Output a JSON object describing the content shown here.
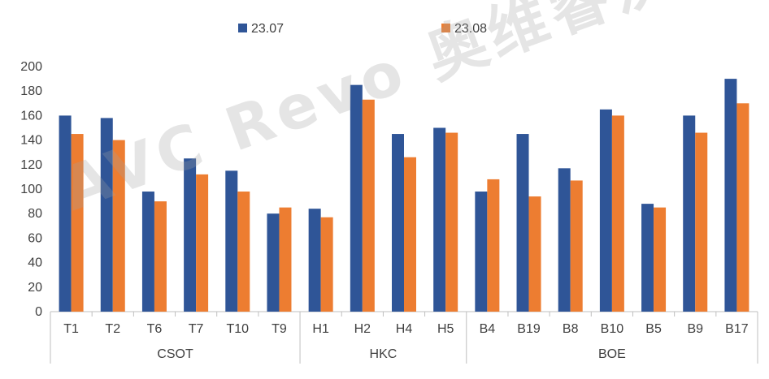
{
  "chart_data": {
    "type": "bar",
    "title": "",
    "xlabel": "",
    "ylabel": "",
    "ylim": [
      0,
      200
    ],
    "yticks": [
      0,
      20,
      40,
      60,
      80,
      100,
      120,
      140,
      160,
      180,
      200
    ],
    "grid": false,
    "legend_position": "top",
    "categories": [
      "T1",
      "T2",
      "T6",
      "T7",
      "T10",
      "T9",
      "H1",
      "H2",
      "H4",
      "H5",
      "B4",
      "B19",
      "B8",
      "B10",
      "B5",
      "B9",
      "B17"
    ],
    "groups": [
      {
        "name": "CSOT",
        "categories": [
          "T1",
          "T2",
          "T6",
          "T7",
          "T10",
          "T9"
        ]
      },
      {
        "name": "HKC",
        "categories": [
          "H1",
          "H2",
          "H4",
          "H5"
        ]
      },
      {
        "name": "BOE",
        "categories": [
          "B4",
          "B19",
          "B8",
          "B10",
          "B5",
          "B9",
          "B17"
        ]
      }
    ],
    "series": [
      {
        "name": "23.07",
        "color": "#2f5597",
        "values": [
          160,
          158,
          98,
          125,
          115,
          80,
          84,
          185,
          145,
          150,
          98,
          145,
          117,
          165,
          88,
          160,
          190
        ]
      },
      {
        "name": "23.08",
        "color": "#ed7d31",
        "values": [
          145,
          140,
          90,
          112,
          98,
          85,
          77,
          173,
          126,
          146,
          108,
          94,
          107,
          160,
          85,
          146,
          170
        ]
      }
    ]
  },
  "watermark": {
    "text": "AVC Revo 奥维睿沃"
  }
}
